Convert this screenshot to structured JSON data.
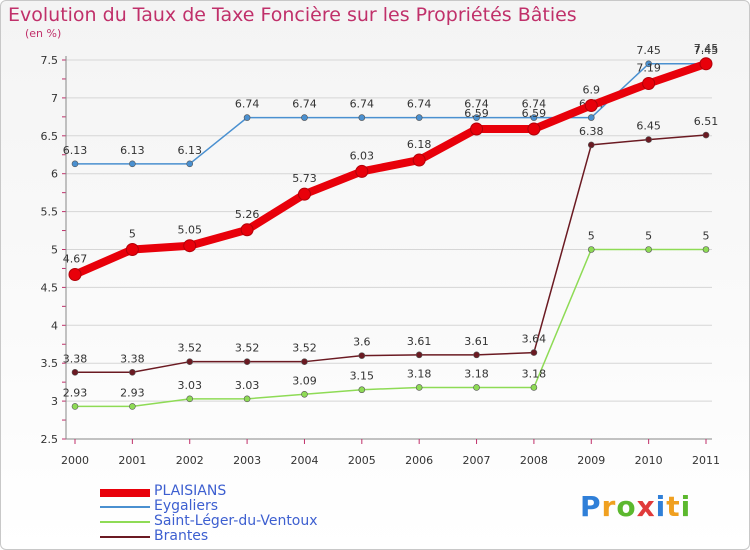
{
  "chart_data": {
    "type": "line",
    "title": "Evolution du Taux de Taxe Foncière sur les Propriétés Bâties",
    "unit": "(en %)",
    "categories": [
      "2000",
      "2001",
      "2002",
      "2003",
      "2004",
      "2005",
      "2006",
      "2007",
      "2008",
      "2009",
      "2010",
      "2011"
    ],
    "ylim": [
      2.5,
      7.5
    ],
    "yticks": [
      "2.5",
      "3",
      "3.5",
      "4",
      "4.5",
      "5",
      "5.5",
      "6",
      "6.5",
      "7",
      "7.5"
    ],
    "series": [
      {
        "name": "Eygaliers",
        "color": "#4a90d0",
        "values": [
          6.13,
          6.13,
          6.13,
          6.74,
          6.74,
          6.74,
          6.74,
          6.74,
          6.74,
          6.74,
          7.45,
          7.45
        ],
        "labels": [
          "6.13",
          "6.13",
          "6.13",
          "6.74",
          "6.74",
          "6.74",
          "6.74",
          "6.74",
          "6.74",
          "6.74",
          "7.45",
          "7.45"
        ]
      },
      {
        "name": "Saint-Léger-du-Ventoux",
        "color": "#8edb55",
        "values": [
          2.93,
          2.93,
          3.03,
          3.03,
          3.09,
          3.15,
          3.18,
          3.18,
          3.18,
          5,
          5,
          5
        ],
        "labels": [
          "2.93",
          "2.93",
          "3.03",
          "3.03",
          "3.09",
          "3.15",
          "3.18",
          "3.18",
          "3.18",
          "5",
          "5",
          "5"
        ]
      },
      {
        "name": "Brantes",
        "color": "#6b1a22",
        "values": [
          3.38,
          3.38,
          3.52,
          3.52,
          3.52,
          3.6,
          3.61,
          3.61,
          3.64,
          6.38,
          6.45,
          6.51
        ],
        "labels": [
          "3.38",
          "3.38",
          "3.52",
          "3.52",
          "3.52",
          "3.6",
          "3.61",
          "3.61",
          "3.64",
          "6.38",
          "6.45",
          "6.51"
        ]
      },
      {
        "name": "PLAISIANS",
        "color": "#e8000a",
        "values": [
          4.67,
          5,
          5.05,
          5.26,
          5.73,
          6.03,
          6.18,
          6.59,
          6.59,
          6.9,
          7.19,
          7.45
        ],
        "labels": [
          "4.67",
          "5",
          "5.05",
          "5.26",
          "5.73",
          "6.03",
          "6.18",
          "6.59",
          "6.59",
          "6.9",
          "7.19",
          "7.45"
        ]
      }
    ],
    "legend": [
      "PLAISIANS",
      "Eygaliers",
      "Saint-Léger-du-Ventoux",
      "Brantes"
    ]
  },
  "logo": {
    "letters": [
      "P",
      "r",
      "o",
      "x",
      "i",
      "t",
      "i"
    ],
    "colors": [
      "#2f7fd8",
      "#f0a020",
      "#5cb82e",
      "#e03a3a",
      "#2f7fd8",
      "#f0a020",
      "#5cb82e"
    ]
  }
}
